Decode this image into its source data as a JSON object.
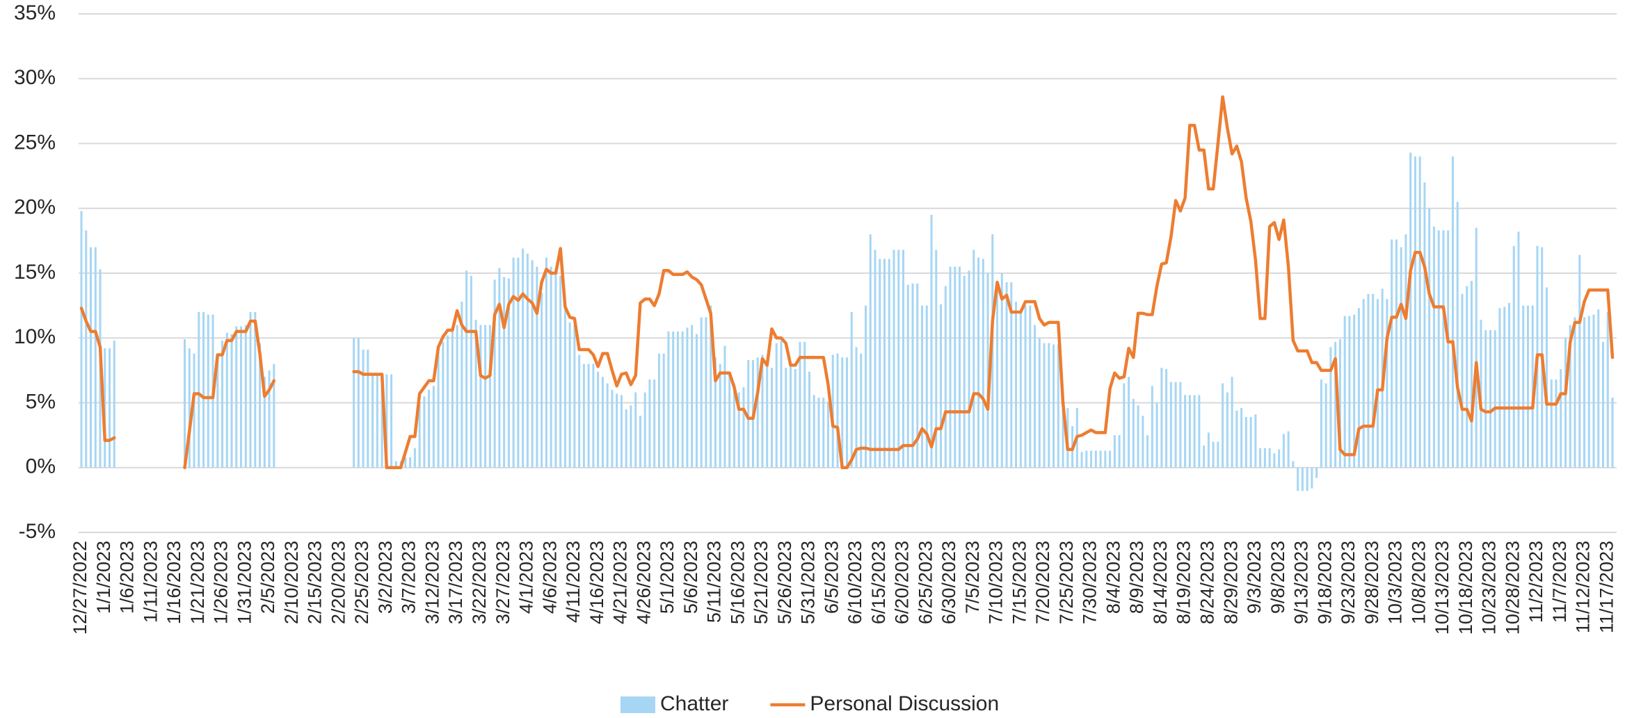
{
  "chart_data": {
    "type": "bar-line",
    "categories": [
      "12/27/2022",
      null,
      null,
      null,
      null,
      "1/1/2023",
      null,
      null,
      null,
      null,
      "1/6/2023",
      null,
      null,
      null,
      null,
      "1/11/2023",
      null,
      null,
      null,
      null,
      "1/16/2023",
      null,
      null,
      null,
      null,
      "1/21/2023",
      null,
      null,
      null,
      null,
      "1/26/2023",
      null,
      null,
      null,
      null,
      "1/31/2023",
      null,
      null,
      null,
      null,
      "2/5/2023",
      null,
      null,
      null,
      null,
      "2/10/2023",
      null,
      null,
      null,
      null,
      "2/15/2023",
      null,
      null,
      null,
      null,
      "2/20/2023",
      null,
      null,
      null,
      null,
      "2/25/2023",
      null,
      null,
      null,
      null,
      "3/2/2023",
      null,
      null,
      null,
      null,
      "3/7/2023",
      null,
      null,
      null,
      null,
      "3/12/2023",
      null,
      null,
      null,
      null,
      "3/17/2023",
      null,
      null,
      null,
      null,
      "3/22/2023",
      null,
      null,
      null,
      null,
      "3/27/2023",
      null,
      null,
      null,
      null,
      "4/1/2023",
      null,
      null,
      null,
      null,
      "4/6/2023",
      null,
      null,
      null,
      null,
      "4/11/2023",
      null,
      null,
      null,
      null,
      "4/16/2023",
      null,
      null,
      null,
      null,
      "4/21/2023",
      null,
      null,
      null,
      null,
      "4/26/2023",
      null,
      null,
      null,
      null,
      "5/1/2023",
      null,
      null,
      null,
      null,
      "5/6/2023",
      null,
      null,
      null,
      null,
      "5/11/2023",
      null,
      null,
      null,
      null,
      "5/16/2023",
      null,
      null,
      null,
      null,
      "5/21/2023",
      null,
      null,
      null,
      null,
      "5/26/2023",
      null,
      null,
      null,
      null,
      "5/31/2023",
      null,
      null,
      null,
      null,
      "6/5/2023",
      null,
      null,
      null,
      null,
      "6/10/2023",
      null,
      null,
      null,
      null,
      "6/15/2023",
      null,
      null,
      null,
      null,
      "6/20/2023",
      null,
      null,
      null,
      null,
      "6/25/2023",
      null,
      null,
      null,
      null,
      "6/30/2023",
      null,
      null,
      null,
      null,
      "7/5/2023",
      null,
      null,
      null,
      null,
      "7/10/2023",
      null,
      null,
      null,
      null,
      "7/15/2023",
      null,
      null,
      null,
      null,
      "7/20/2023",
      null,
      null,
      null,
      null,
      "7/25/2023",
      null,
      null,
      null,
      null,
      "7/30/2023",
      null,
      null,
      null,
      null,
      "8/4/2023",
      null,
      null,
      null,
      null,
      "8/9/2023",
      null,
      null,
      null,
      null,
      "8/14/2023",
      null,
      null,
      null,
      null,
      "8/19/2023",
      null,
      null,
      null,
      null,
      "8/24/2023",
      null,
      null,
      null,
      null,
      "8/29/2023",
      null,
      null,
      null,
      null,
      "9/3/2023",
      null,
      null,
      null,
      null,
      "9/8/2023",
      null,
      null,
      null,
      null,
      "9/13/2023",
      null,
      null,
      null,
      null,
      "9/18/2023",
      null,
      null,
      null,
      null,
      "9/23/2023",
      null,
      null,
      null,
      null,
      "9/28/2023",
      null,
      null,
      null,
      null,
      "10/3/2023",
      null,
      null,
      null,
      null,
      "10/8/2023",
      null,
      null,
      null,
      null,
      "10/13/2023",
      null,
      null,
      null,
      null,
      "10/18/2023",
      null,
      null,
      null,
      null,
      "10/23/2023",
      null,
      null,
      null,
      null,
      "10/28/2023",
      null,
      null,
      null,
      null,
      "11/2/2023",
      null,
      null,
      null,
      null,
      "11/7/2023",
      null,
      null,
      null,
      null,
      "11/12/2023",
      null,
      null,
      null,
      null,
      "11/17/2023",
      null
    ],
    "series": [
      {
        "name": "Chatter",
        "type": "bar",
        "color": "#a6d6f4",
        "values": [
          19.8,
          18.3,
          17,
          17,
          15.3,
          9.2,
          9.2,
          9.8,
          null,
          null,
          null,
          null,
          null,
          null,
          null,
          null,
          null,
          null,
          null,
          null,
          null,
          null,
          9.9,
          9.2,
          8.8,
          12,
          12,
          11.8,
          11.8,
          8.8,
          9.8,
          10.4,
          10.3,
          10.9,
          10.9,
          11,
          12,
          12,
          9.6,
          7,
          7.5,
          8,
          null,
          null,
          null,
          null,
          null,
          null,
          null,
          null,
          null,
          null,
          null,
          null,
          null,
          null,
          null,
          null,
          10,
          10,
          9.1,
          9.1,
          7.2,
          7.2,
          7.2,
          7.2,
          7.2,
          0.5,
          0.5,
          0.8,
          0.8,
          1.5,
          5,
          5.5,
          6,
          6.3,
          9,
          9.7,
          10.2,
          10.8,
          11,
          12.8,
          15.2,
          14.8,
          11.4,
          11,
          11,
          11,
          14.5,
          15.4,
          14.7,
          14.6,
          16.2,
          16.2,
          16.9,
          16.5,
          16,
          15.5,
          13.5,
          16.2,
          15.5,
          15,
          14.8,
          12.7,
          11.2,
          11,
          8.7,
          8,
          8,
          8,
          7.4,
          7,
          6.5,
          6,
          5.7,
          5.6,
          4.5,
          4.8,
          5.8,
          4,
          5.8,
          6.8,
          6.8,
          8.8,
          8.8,
          10.5,
          10.5,
          10.5,
          10.5,
          10.8,
          11,
          10.3,
          11.6,
          11.6,
          12.5,
          8.5,
          8,
          9.4,
          7.3,
          6.5,
          5.8,
          6.2,
          8.3,
          8.3,
          8.5,
          8.7,
          8,
          7.7,
          9.6,
          9.8,
          7.7,
          7.8,
          7.6,
          9.7,
          9.7,
          7.4,
          5.6,
          5.4,
          5.4,
          5.1,
          8.7,
          8.8,
          8.5,
          8.5,
          12,
          9.3,
          8.8,
          12.5,
          18,
          16.8,
          16.1,
          16.1,
          16.1,
          16.8,
          16.8,
          16.8,
          14.1,
          14.2,
          14.2,
          12.5,
          12.5,
          19.5,
          16.8,
          12.6,
          14,
          15.5,
          15.5,
          15.5,
          14.8,
          15.2,
          16.8,
          16.2,
          16.1,
          15,
          18,
          14.3,
          15,
          14.3,
          14.3,
          12.8,
          12.2,
          12.5,
          12.5,
          11,
          10,
          9.6,
          9.6,
          9.5,
          9.5,
          5.7,
          4.6,
          3.2,
          4.6,
          1.2,
          1.3,
          1.3,
          1.3,
          1.3,
          1.3,
          1.3,
          2.5,
          2.5,
          6.5,
          7,
          5.3,
          4.8,
          4,
          2.5,
          6.3,
          5,
          7.7,
          7.6,
          6.6,
          6.6,
          6.6,
          5.6,
          5.6,
          5.6,
          5.6,
          1.7,
          2.7,
          2,
          2,
          6.5,
          5.8,
          7,
          4.4,
          4.6,
          3.9,
          3.9,
          4.1,
          1.5,
          1.5,
          1.5,
          1.1,
          1.4,
          2.6,
          2.8,
          0.5,
          -1.8,
          -1.8,
          -1.8,
          -1.6,
          -0.8,
          6.8,
          6.5,
          9.3,
          9.7,
          9.9,
          11.7,
          11.7,
          11.8,
          12.3,
          13,
          13.4,
          13.4,
          13,
          13.8,
          13,
          17.6,
          17.6,
          17,
          18,
          24.3,
          24,
          24,
          22,
          20,
          18.6,
          18.3,
          18.3,
          18.3,
          24,
          20.5,
          13.4,
          14,
          14.4,
          18.5,
          11.4,
          10.6,
          10.6,
          10.6,
          12.3,
          12.4,
          12.7,
          17.1,
          18.2,
          12.5,
          12.5,
          12.5,
          17.1,
          17,
          13.9,
          6.8,
          6.8,
          7.6,
          10,
          11,
          11.6,
          16.4,
          11.6,
          11.7,
          11.8,
          12.2,
          9.7,
          12,
          5.4
        ]
      },
      {
        "name": "Personal Discussion",
        "type": "line",
        "color": "#ed7d31",
        "values": [
          12.3,
          11.3,
          10.5,
          10.5,
          9.3,
          2.1,
          2.1,
          2.3,
          null,
          null,
          null,
          null,
          null,
          null,
          null,
          null,
          null,
          null,
          null,
          null,
          null,
          null,
          0,
          2.8,
          5.7,
          5.7,
          5.4,
          5.4,
          5.4,
          8.7,
          8.7,
          9.8,
          9.8,
          10.5,
          10.5,
          10.5,
          11.3,
          11.3,
          8.8,
          5.5,
          6,
          6.7,
          null,
          null,
          null,
          null,
          null,
          null,
          null,
          null,
          null,
          null,
          null,
          null,
          null,
          null,
          null,
          null,
          7.4,
          7.4,
          7.2,
          7.2,
          7.2,
          7.2,
          7.2,
          0,
          0,
          0,
          0,
          1.2,
          2.4,
          2.4,
          5.7,
          6.2,
          6.7,
          6.7,
          9.3,
          10.1,
          10.6,
          10.6,
          12.1,
          11,
          10.5,
          10.5,
          10.5,
          7.1,
          6.9,
          7.1,
          11.8,
          12.6,
          10.8,
          12.6,
          13.2,
          12.9,
          13.4,
          13,
          12.7,
          11.9,
          14.3,
          15.3,
          15,
          15,
          16.9,
          12.4,
          11.6,
          11.5,
          9.1,
          9.1,
          9.1,
          8.7,
          7.8,
          8.8,
          8.8,
          7.5,
          6.3,
          7.2,
          7.3,
          6.4,
          7.1,
          12.7,
          13,
          13,
          12.5,
          13.4,
          15.2,
          15.2,
          14.9,
          14.9,
          14.9,
          15.1,
          14.7,
          14.5,
          14.1,
          13,
          11.9,
          6.7,
          7.3,
          7.3,
          7.3,
          6.2,
          4.5,
          4.5,
          3.8,
          3.8,
          5.8,
          8.4,
          7.9,
          10.7,
          10,
          10,
          9.6,
          7.9,
          7.9,
          8.5,
          8.5,
          8.5,
          8.5,
          8.5,
          8.5,
          6.4,
          3.2,
          3.1,
          0,
          0,
          0.6,
          1.4,
          1.5,
          1.5,
          1.4,
          1.4,
          1.4,
          1.4,
          1.4,
          1.4,
          1.4,
          1.7,
          1.7,
          1.7,
          2.2,
          3,
          2.6,
          1.6,
          3,
          3,
          4.3,
          4.3,
          4.3,
          4.3,
          4.3,
          4.3,
          5.7,
          5.7,
          5.3,
          4.5,
          11.3,
          14.3,
          13,
          13.3,
          12,
          12,
          12,
          12.8,
          12.8,
          12.8,
          11.5,
          11,
          11.2,
          11.2,
          11.2,
          5,
          1.4,
          1.4,
          2.4,
          2.5,
          2.7,
          2.9,
          2.7,
          2.7,
          2.7,
          6.1,
          7.3,
          6.9,
          7,
          9.2,
          8.5,
          11.9,
          11.9,
          11.8,
          11.8,
          14,
          15.7,
          15.8,
          17.8,
          20.6,
          19.8,
          20.8,
          26.4,
          26.4,
          24.5,
          24.5,
          21.5,
          21.5,
          25,
          28.6,
          26.2,
          24.2,
          24.8,
          23.6,
          20.8,
          19,
          16,
          11.5,
          11.5,
          18.6,
          18.9,
          17.6,
          19.1,
          15.5,
          9.8,
          9,
          9,
          9,
          8.1,
          8.1,
          7.5,
          7.5,
          7.5,
          8.4,
          1.4,
          1,
          1,
          1,
          3,
          3.2,
          3.2,
          3.2,
          6,
          6,
          10,
          11.6,
          11.6,
          12.6,
          11.5,
          15.2,
          16.6,
          16.6,
          15.5,
          13.4,
          12.4,
          12.4,
          12.4,
          9.7,
          9.7,
          6.2,
          4.5,
          4.5,
          3.6,
          8.1,
          4.5,
          4.3,
          4.3,
          4.6,
          4.6,
          4.6,
          4.6,
          4.6,
          4.6,
          4.6,
          4.6,
          4.6,
          8.7,
          8.7,
          4.9,
          4.9,
          4.9,
          5.7,
          5.7,
          9.7,
          11.2,
          11.2,
          12.8,
          13.7,
          13.7,
          13.7,
          13.7,
          13.7,
          8.5
        ]
      }
    ],
    "ylim": [
      -5,
      35
    ],
    "yticks": [
      {
        "value": -5,
        "label": "-5%"
      },
      {
        "value": 0,
        "label": "0%"
      },
      {
        "value": 5,
        "label": "5%"
      },
      {
        "value": 10,
        "label": "10%"
      },
      {
        "value": 15,
        "label": "15%"
      },
      {
        "value": 20,
        "label": "20%"
      },
      {
        "value": 25,
        "label": "25%"
      },
      {
        "value": 30,
        "label": "30%"
      },
      {
        "value": 35,
        "label": "35%"
      }
    ],
    "grid": true,
    "legend": "bottom"
  }
}
